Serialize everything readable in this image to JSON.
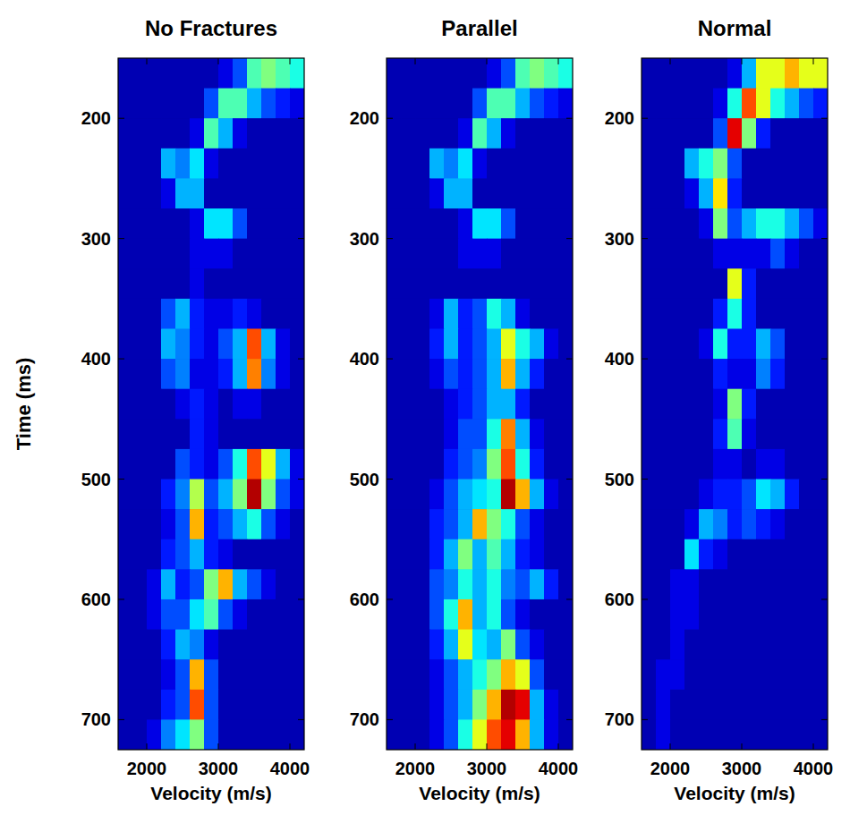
{
  "chart_data": [
    {
      "type": "heatmap",
      "title": "No Fractures",
      "xlabel": "Velocity (m/s)",
      "ylabel": "Time (ms)",
      "xlim": [
        1600,
        4200
      ],
      "xticks": [
        2000,
        3000,
        4000
      ],
      "ylim": [
        150,
        725
      ],
      "yticks": [
        200,
        300,
        400,
        500,
        600,
        700
      ],
      "x": [
        1700,
        1900,
        2100,
        2300,
        2500,
        2700,
        2900,
        3100,
        3300,
        3500,
        3700,
        3900,
        4100
      ],
      "y": [
        162.5,
        187.5,
        212.5,
        237.5,
        262.5,
        287.5,
        312.5,
        337.5,
        362.5,
        387.5,
        412.5,
        437.5,
        462.5,
        487.5,
        512.5,
        537.5,
        562.5,
        587.5,
        612.5,
        637.5,
        662.5,
        687.5,
        712.5
      ],
      "zlim": [
        0,
        1
      ],
      "cells": [
        [
          0.05,
          0.05,
          0.05,
          0.05,
          0.05,
          0.05,
          0.05,
          0.1,
          0.2,
          0.45,
          0.5,
          0.45,
          0.4
        ],
        [
          0.05,
          0.05,
          0.05,
          0.05,
          0.05,
          0.05,
          0.2,
          0.45,
          0.45,
          0.3,
          0.2,
          0.15,
          0.1
        ],
        [
          0.05,
          0.05,
          0.05,
          0.05,
          0.05,
          0.1,
          0.45,
          0.3,
          0.1,
          0.05,
          0.05,
          0.05,
          0.05
        ],
        [
          0.05,
          0.05,
          0.05,
          0.3,
          0.25,
          0.35,
          0.1,
          0.05,
          0.05,
          0.05,
          0.05,
          0.05,
          0.05
        ],
        [
          0.05,
          0.05,
          0.05,
          0.1,
          0.3,
          0.3,
          0.05,
          0.05,
          0.05,
          0.05,
          0.05,
          0.05,
          0.05
        ],
        [
          0.05,
          0.05,
          0.05,
          0.05,
          0.05,
          0.1,
          0.35,
          0.35,
          0.2,
          0.05,
          0.05,
          0.05,
          0.05
        ],
        [
          0.05,
          0.05,
          0.05,
          0.05,
          0.05,
          0.1,
          0.1,
          0.1,
          0.05,
          0.05,
          0.05,
          0.05,
          0.05
        ],
        [
          0.05,
          0.05,
          0.05,
          0.05,
          0.05,
          0.1,
          0.05,
          0.05,
          0.05,
          0.05,
          0.05,
          0.05,
          0.05
        ],
        [
          0.05,
          0.05,
          0.05,
          0.2,
          0.3,
          0.15,
          0.1,
          0.1,
          0.15,
          0.1,
          0.05,
          0.05,
          0.05
        ],
        [
          0.05,
          0.05,
          0.05,
          0.3,
          0.25,
          0.15,
          0.1,
          0.2,
          0.3,
          0.8,
          0.3,
          0.1,
          0.05
        ],
        [
          0.05,
          0.05,
          0.05,
          0.2,
          0.25,
          0.1,
          0.1,
          0.15,
          0.3,
          0.75,
          0.25,
          0.1,
          0.05
        ],
        [
          0.05,
          0.05,
          0.05,
          0.05,
          0.1,
          0.15,
          0.1,
          0.05,
          0.1,
          0.1,
          0.05,
          0.05,
          0.05
        ],
        [
          0.05,
          0.05,
          0.05,
          0.05,
          0.05,
          0.15,
          0.1,
          0.05,
          0.05,
          0.05,
          0.05,
          0.05,
          0.05
        ],
        [
          0.05,
          0.05,
          0.05,
          0.05,
          0.2,
          0.15,
          0.1,
          0.2,
          0.4,
          0.8,
          0.6,
          0.3,
          0.1
        ],
        [
          0.05,
          0.05,
          0.05,
          0.15,
          0.25,
          0.55,
          0.2,
          0.3,
          0.5,
          0.95,
          0.5,
          0.2,
          0.1
        ],
        [
          0.05,
          0.05,
          0.05,
          0.1,
          0.2,
          0.7,
          0.15,
          0.2,
          0.3,
          0.4,
          0.2,
          0.1,
          0.05
        ],
        [
          0.05,
          0.05,
          0.05,
          0.15,
          0.2,
          0.3,
          0.15,
          0.1,
          0.05,
          0.05,
          0.05,
          0.05,
          0.05
        ],
        [
          0.05,
          0.05,
          0.1,
          0.3,
          0.15,
          0.2,
          0.5,
          0.7,
          0.3,
          0.2,
          0.1,
          0.05,
          0.05
        ],
        [
          0.05,
          0.05,
          0.1,
          0.2,
          0.2,
          0.35,
          0.45,
          0.2,
          0.1,
          0.05,
          0.05,
          0.05,
          0.05
        ],
        [
          0.05,
          0.05,
          0.05,
          0.15,
          0.3,
          0.25,
          0.1,
          0.05,
          0.05,
          0.05,
          0.05,
          0.05,
          0.05
        ],
        [
          0.05,
          0.05,
          0.05,
          0.1,
          0.2,
          0.7,
          0.2,
          0.05,
          0.05,
          0.05,
          0.05,
          0.05,
          0.05
        ],
        [
          0.05,
          0.05,
          0.05,
          0.15,
          0.2,
          0.8,
          0.2,
          0.05,
          0.05,
          0.05,
          0.05,
          0.05,
          0.05
        ],
        [
          0.05,
          0.05,
          0.1,
          0.25,
          0.35,
          0.5,
          0.2,
          0.05,
          0.05,
          0.05,
          0.05,
          0.05,
          0.05
        ]
      ]
    },
    {
      "type": "heatmap",
      "title": "Parallel",
      "xlabel": "Velocity (m/s)",
      "xlim": [
        1600,
        4200
      ],
      "xticks": [
        2000,
        3000,
        4000
      ],
      "ylim": [
        150,
        725
      ],
      "yticks": [
        200,
        300,
        400,
        500,
        600,
        700
      ],
      "x": [
        1700,
        1900,
        2100,
        2300,
        2500,
        2700,
        2900,
        3100,
        3300,
        3500,
        3700,
        3900,
        4100
      ],
      "y": [
        162.5,
        187.5,
        212.5,
        237.5,
        262.5,
        287.5,
        312.5,
        337.5,
        362.5,
        387.5,
        412.5,
        437.5,
        462.5,
        487.5,
        512.5,
        537.5,
        562.5,
        587.5,
        612.5,
        637.5,
        662.5,
        687.5,
        712.5
      ],
      "zlim": [
        0,
        1
      ],
      "cells": [
        [
          0.05,
          0.05,
          0.05,
          0.05,
          0.05,
          0.05,
          0.05,
          0.1,
          0.2,
          0.45,
          0.5,
          0.45,
          0.4
        ],
        [
          0.05,
          0.05,
          0.05,
          0.05,
          0.05,
          0.05,
          0.2,
          0.45,
          0.45,
          0.3,
          0.2,
          0.15,
          0.1
        ],
        [
          0.05,
          0.05,
          0.05,
          0.05,
          0.05,
          0.1,
          0.45,
          0.3,
          0.1,
          0.05,
          0.05,
          0.05,
          0.05
        ],
        [
          0.05,
          0.05,
          0.05,
          0.3,
          0.25,
          0.35,
          0.1,
          0.05,
          0.05,
          0.05,
          0.05,
          0.05,
          0.05
        ],
        [
          0.05,
          0.05,
          0.05,
          0.1,
          0.3,
          0.3,
          0.05,
          0.05,
          0.05,
          0.05,
          0.05,
          0.05,
          0.05
        ],
        [
          0.05,
          0.05,
          0.05,
          0.05,
          0.05,
          0.1,
          0.35,
          0.35,
          0.2,
          0.05,
          0.05,
          0.05,
          0.05
        ],
        [
          0.05,
          0.05,
          0.05,
          0.05,
          0.05,
          0.1,
          0.1,
          0.1,
          0.05,
          0.05,
          0.05,
          0.05,
          0.05
        ],
        [
          0.05,
          0.05,
          0.05,
          0.05,
          0.05,
          0.05,
          0.05,
          0.05,
          0.05,
          0.05,
          0.05,
          0.05,
          0.05
        ],
        [
          0.05,
          0.05,
          0.05,
          0.1,
          0.3,
          0.15,
          0.2,
          0.4,
          0.3,
          0.1,
          0.05,
          0.05,
          0.05
        ],
        [
          0.05,
          0.05,
          0.05,
          0.15,
          0.3,
          0.15,
          0.2,
          0.3,
          0.6,
          0.4,
          0.3,
          0.1,
          0.05
        ],
        [
          0.05,
          0.05,
          0.05,
          0.1,
          0.2,
          0.15,
          0.2,
          0.3,
          0.7,
          0.3,
          0.15,
          0.05,
          0.05
        ],
        [
          0.05,
          0.05,
          0.05,
          0.05,
          0.1,
          0.15,
          0.2,
          0.3,
          0.3,
          0.15,
          0.05,
          0.05,
          0.05
        ],
        [
          0.05,
          0.05,
          0.05,
          0.05,
          0.1,
          0.2,
          0.2,
          0.4,
          0.75,
          0.3,
          0.1,
          0.05,
          0.05
        ],
        [
          0.05,
          0.05,
          0.05,
          0.05,
          0.15,
          0.2,
          0.25,
          0.5,
          0.8,
          0.4,
          0.15,
          0.05,
          0.05
        ],
        [
          0.05,
          0.05,
          0.05,
          0.1,
          0.2,
          0.3,
          0.35,
          0.4,
          0.95,
          0.7,
          0.3,
          0.1,
          0.05
        ],
        [
          0.05,
          0.05,
          0.05,
          0.15,
          0.2,
          0.3,
          0.7,
          0.5,
          0.4,
          0.2,
          0.1,
          0.05,
          0.05
        ],
        [
          0.05,
          0.05,
          0.05,
          0.15,
          0.3,
          0.5,
          0.3,
          0.45,
          0.3,
          0.15,
          0.1,
          0.05,
          0.05
        ],
        [
          0.05,
          0.05,
          0.05,
          0.2,
          0.25,
          0.4,
          0.3,
          0.4,
          0.25,
          0.2,
          0.3,
          0.15,
          0.05
        ],
        [
          0.05,
          0.05,
          0.05,
          0.2,
          0.4,
          0.7,
          0.3,
          0.4,
          0.2,
          0.1,
          0.05,
          0.05,
          0.05
        ],
        [
          0.05,
          0.05,
          0.05,
          0.15,
          0.3,
          0.6,
          0.35,
          0.3,
          0.5,
          0.2,
          0.1,
          0.05,
          0.05
        ],
        [
          0.05,
          0.05,
          0.05,
          0.1,
          0.2,
          0.3,
          0.4,
          0.5,
          0.7,
          0.6,
          0.2,
          0.05,
          0.05
        ],
        [
          0.05,
          0.05,
          0.05,
          0.1,
          0.2,
          0.3,
          0.5,
          0.7,
          0.95,
          0.9,
          0.3,
          0.1,
          0.05
        ],
        [
          0.05,
          0.05,
          0.05,
          0.1,
          0.2,
          0.4,
          0.6,
          0.8,
          0.9,
          0.7,
          0.3,
          0.1,
          0.05
        ]
      ]
    },
    {
      "type": "heatmap",
      "title": "Normal",
      "xlabel": "Velocity (m/s)",
      "xlim": [
        1600,
        4200
      ],
      "xticks": [
        2000,
        3000,
        4000
      ],
      "ylim": [
        150,
        725
      ],
      "yticks": [
        200,
        300,
        400,
        500,
        600,
        700
      ],
      "x": [
        1700,
        1900,
        2100,
        2300,
        2500,
        2700,
        2900,
        3100,
        3300,
        3500,
        3700,
        3900,
        4100
      ],
      "y": [
        162.5,
        187.5,
        212.5,
        237.5,
        262.5,
        287.5,
        312.5,
        337.5,
        362.5,
        387.5,
        412.5,
        437.5,
        462.5,
        487.5,
        512.5,
        537.5,
        562.5,
        587.5,
        612.5,
        637.5,
        662.5,
        687.5,
        712.5
      ],
      "zlim": [
        0,
        1
      ],
      "cells": [
        [
          0.05,
          0.05,
          0.05,
          0.05,
          0.05,
          0.05,
          0.1,
          0.3,
          0.6,
          0.6,
          0.7,
          0.6,
          0.6
        ],
        [
          0.05,
          0.05,
          0.05,
          0.05,
          0.05,
          0.1,
          0.4,
          0.8,
          0.6,
          0.4,
          0.3,
          0.2,
          0.15
        ],
        [
          0.05,
          0.05,
          0.05,
          0.05,
          0.05,
          0.2,
          0.9,
          0.5,
          0.15,
          0.05,
          0.05,
          0.05,
          0.05
        ],
        [
          0.05,
          0.05,
          0.05,
          0.3,
          0.4,
          0.5,
          0.2,
          0.05,
          0.05,
          0.05,
          0.05,
          0.05,
          0.05
        ],
        [
          0.05,
          0.05,
          0.05,
          0.1,
          0.3,
          0.65,
          0.15,
          0.05,
          0.05,
          0.05,
          0.05,
          0.05,
          0.05
        ],
        [
          0.05,
          0.05,
          0.05,
          0.05,
          0.1,
          0.5,
          0.2,
          0.3,
          0.4,
          0.4,
          0.3,
          0.2,
          0.1
        ],
        [
          0.05,
          0.05,
          0.05,
          0.05,
          0.05,
          0.1,
          0.1,
          0.1,
          0.1,
          0.2,
          0.1,
          0.05,
          0.05
        ],
        [
          0.05,
          0.05,
          0.05,
          0.05,
          0.05,
          0.05,
          0.6,
          0.15,
          0.05,
          0.05,
          0.05,
          0.05,
          0.05
        ],
        [
          0.05,
          0.05,
          0.05,
          0.05,
          0.05,
          0.15,
          0.4,
          0.15,
          0.05,
          0.05,
          0.05,
          0.05,
          0.05
        ],
        [
          0.05,
          0.05,
          0.05,
          0.05,
          0.1,
          0.4,
          0.15,
          0.15,
          0.3,
          0.2,
          0.05,
          0.05,
          0.05
        ],
        [
          0.05,
          0.05,
          0.05,
          0.05,
          0.05,
          0.15,
          0.1,
          0.1,
          0.25,
          0.15,
          0.05,
          0.05,
          0.05
        ],
        [
          0.05,
          0.05,
          0.05,
          0.05,
          0.05,
          0.1,
          0.5,
          0.15,
          0.05,
          0.05,
          0.05,
          0.05,
          0.05
        ],
        [
          0.05,
          0.05,
          0.05,
          0.05,
          0.05,
          0.15,
          0.45,
          0.1,
          0.05,
          0.05,
          0.05,
          0.05,
          0.05
        ],
        [
          0.05,
          0.05,
          0.05,
          0.05,
          0.05,
          0.1,
          0.1,
          0.05,
          0.1,
          0.1,
          0.05,
          0.05,
          0.05
        ],
        [
          0.05,
          0.05,
          0.05,
          0.05,
          0.1,
          0.15,
          0.15,
          0.2,
          0.35,
          0.3,
          0.15,
          0.05,
          0.05
        ],
        [
          0.05,
          0.05,
          0.05,
          0.1,
          0.3,
          0.25,
          0.15,
          0.2,
          0.15,
          0.1,
          0.05,
          0.05,
          0.05
        ],
        [
          0.05,
          0.05,
          0.05,
          0.35,
          0.15,
          0.1,
          0.05,
          0.05,
          0.05,
          0.05,
          0.05,
          0.05,
          0.05
        ],
        [
          0.05,
          0.05,
          0.1,
          0.1,
          0.05,
          0.05,
          0.05,
          0.05,
          0.05,
          0.05,
          0.05,
          0.05,
          0.05
        ],
        [
          0.05,
          0.05,
          0.1,
          0.1,
          0.05,
          0.05,
          0.05,
          0.05,
          0.05,
          0.05,
          0.05,
          0.05,
          0.05
        ],
        [
          0.05,
          0.05,
          0.1,
          0.05,
          0.05,
          0.05,
          0.05,
          0.05,
          0.05,
          0.05,
          0.05,
          0.05,
          0.05
        ],
        [
          0.05,
          0.1,
          0.1,
          0.05,
          0.05,
          0.05,
          0.05,
          0.05,
          0.05,
          0.05,
          0.05,
          0.05,
          0.05
        ],
        [
          0.05,
          0.1,
          0.05,
          0.05,
          0.05,
          0.05,
          0.05,
          0.05,
          0.05,
          0.05,
          0.05,
          0.05,
          0.05
        ],
        [
          0.05,
          0.1,
          0.05,
          0.05,
          0.05,
          0.05,
          0.05,
          0.05,
          0.05,
          0.05,
          0.05,
          0.05,
          0.05
        ]
      ]
    }
  ]
}
